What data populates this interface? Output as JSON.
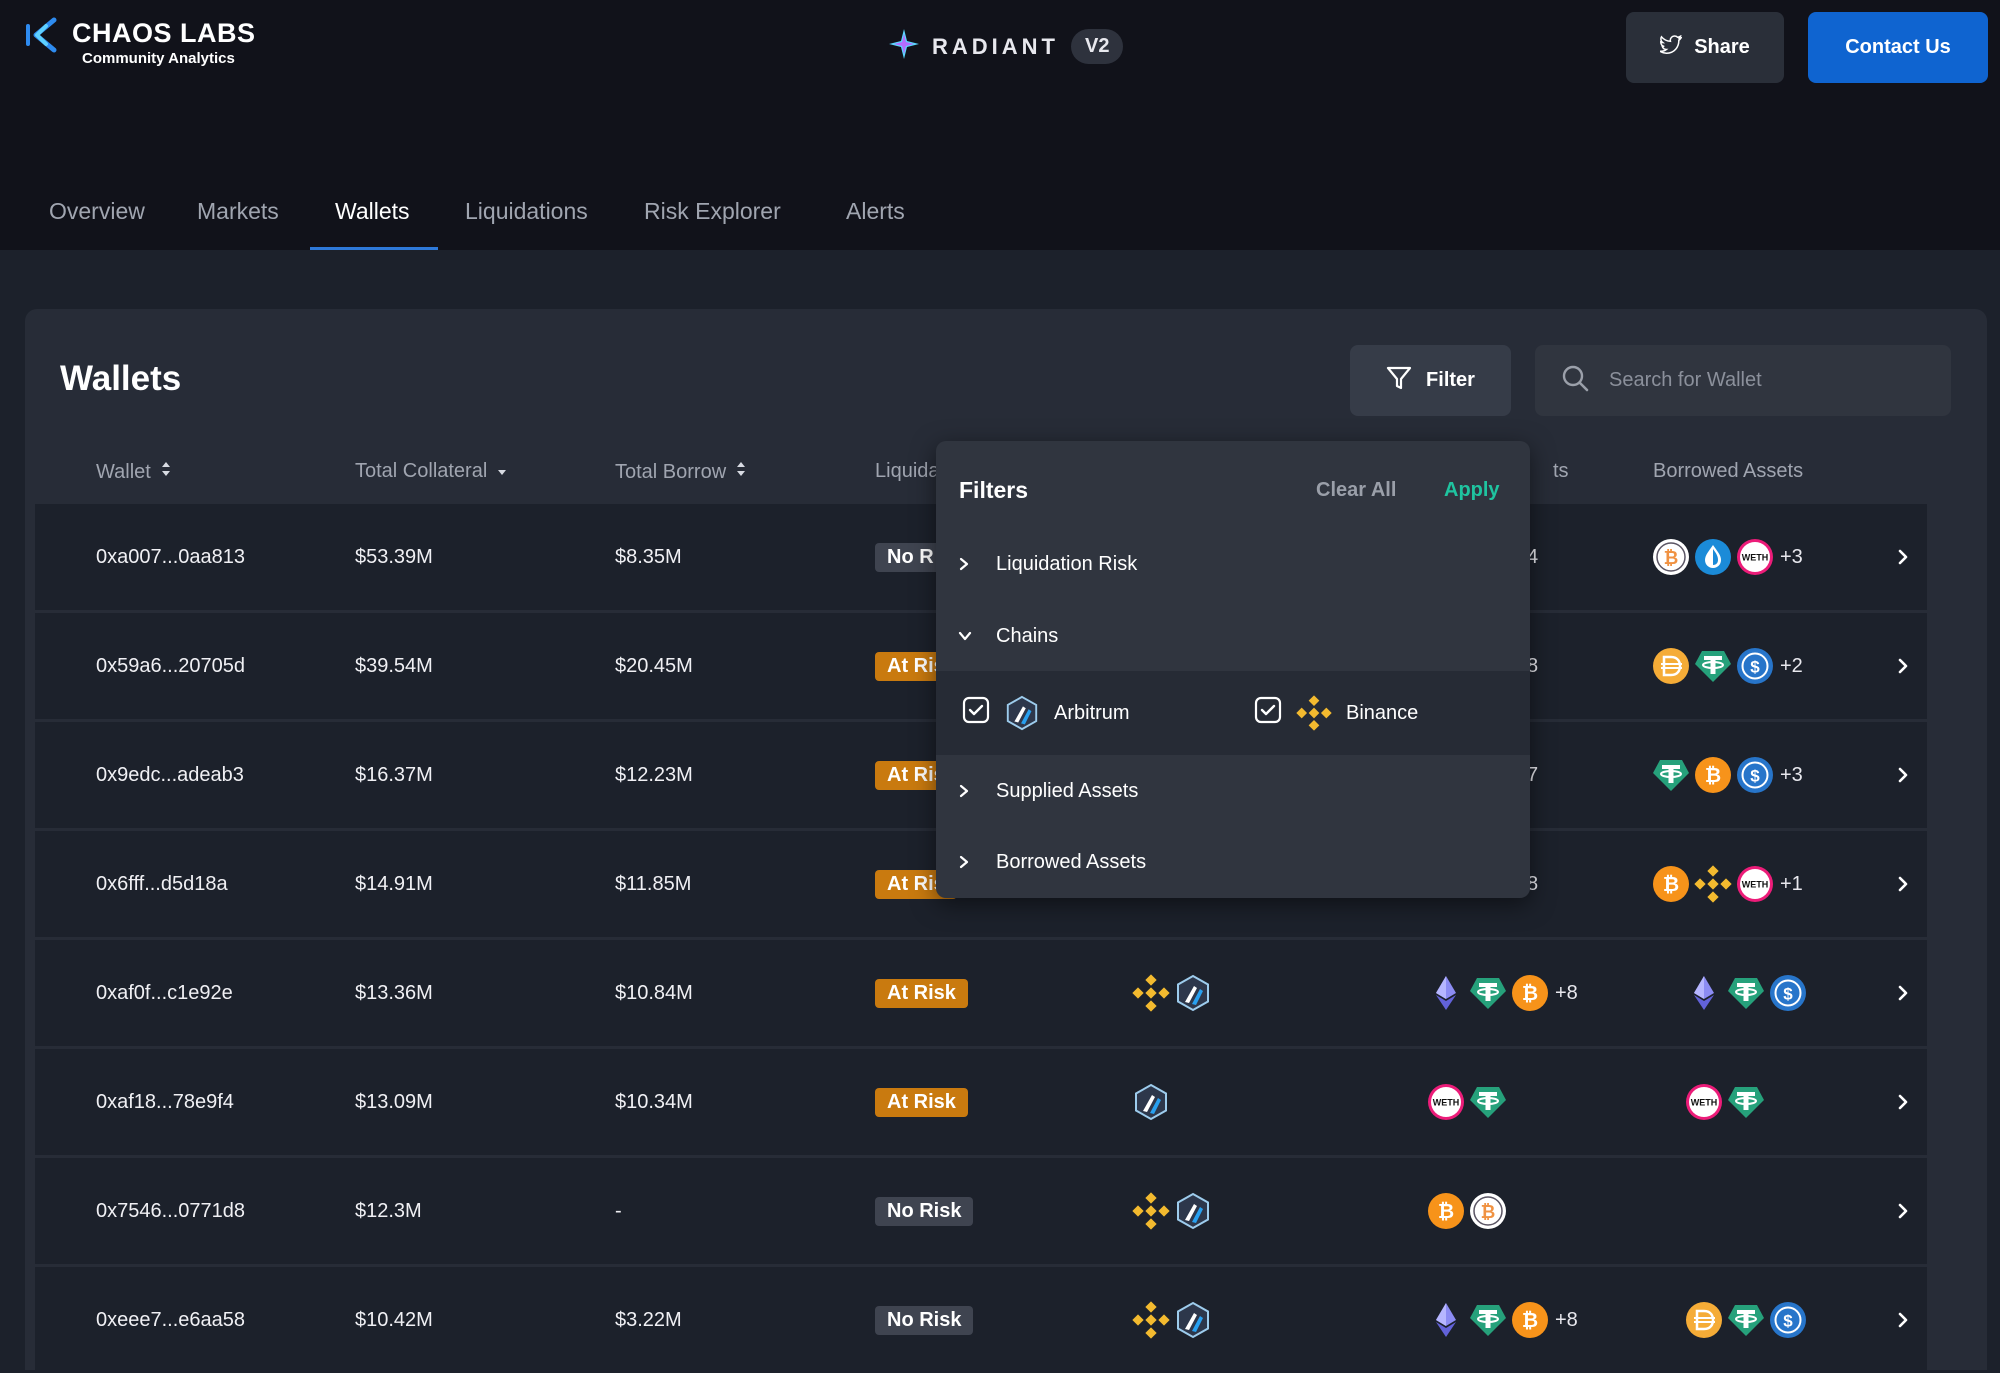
{
  "brand": {
    "name": "CHAOS LABS",
    "subtitle": "Community Analytics"
  },
  "protocol": {
    "name": "RADIANT",
    "version": "V2"
  },
  "header": {
    "share_label": "Share",
    "contact_label": "Contact Us"
  },
  "nav": {
    "tabs": [
      {
        "label": "Overview"
      },
      {
        "label": "Markets"
      },
      {
        "label": "Wallets"
      },
      {
        "label": "Liquidations"
      },
      {
        "label": "Risk Explorer"
      },
      {
        "label": "Alerts"
      }
    ],
    "active_tab": "Wallets"
  },
  "wallets": {
    "title": "Wallets",
    "filter_label": "Filter",
    "search_placeholder": "Search for Wallet",
    "columns": {
      "wallet": "Wallet",
      "total_collateral": "Total Collateral",
      "total_borrow": "Total Borrow",
      "liquidation_visible": "Liquida",
      "supplied_visible": "ts",
      "borrowed_assets": "Borrowed Assets"
    },
    "rows": [
      {
        "wallet": "0xa007...0aa813",
        "collateral": "$53.39M",
        "borrow": "$8.35M",
        "risk": "No R",
        "supplied_more": "4",
        "borrowed_more": "+3"
      },
      {
        "wallet": "0x59a6...20705d",
        "collateral": "$39.54M",
        "borrow": "$20.45M",
        "risk": "At Ris",
        "supplied_more": "8",
        "borrowed_more": "+2"
      },
      {
        "wallet": "0x9edc...adeab3",
        "collateral": "$16.37M",
        "borrow": "$12.23M",
        "risk": "At Ris",
        "supplied_more": "7",
        "borrowed_more": "+3"
      },
      {
        "wallet": "0x6fff...d5d18a",
        "collateral": "$14.91M",
        "borrow": "$11.85M",
        "risk": "At Ris",
        "supplied_more": "8",
        "borrowed_more": "+1"
      },
      {
        "wallet": "0xaf0f...c1e92e",
        "collateral": "$13.36M",
        "borrow": "$10.84M",
        "risk": "At Risk",
        "supplied_more": "+8",
        "borrowed_more": ""
      },
      {
        "wallet": "0xaf18...78e9f4",
        "collateral": "$13.09M",
        "borrow": "$10.34M",
        "risk": "At Risk",
        "supplied_more": "",
        "borrowed_more": ""
      },
      {
        "wallet": "0x7546...0771d8",
        "collateral": "$12.3M",
        "borrow": "-",
        "risk": "No Risk",
        "supplied_more": "",
        "borrowed_more": ""
      },
      {
        "wallet": "0xeee7...e6aa58",
        "collateral": "$10.42M",
        "borrow": "$3.22M",
        "risk": "No Risk",
        "supplied_more": "+8",
        "borrowed_more": ""
      }
    ]
  },
  "filter_panel": {
    "title": "Filters",
    "clear_label": "Clear All",
    "apply_label": "Apply",
    "sections": {
      "liquidation_risk": "Liquidation Risk",
      "chains": "Chains",
      "supplied_assets": "Supplied Assets",
      "borrowed_assets": "Borrowed Assets"
    },
    "chains": [
      {
        "label": "Arbitrum",
        "checked": true
      },
      {
        "label": "Binance",
        "checked": true
      }
    ]
  },
  "colors": {
    "accent_blue": "#0f64d0",
    "apply_green": "#1fc4a0",
    "at_risk": "#c97a0f",
    "no_risk": "#3f4450",
    "bitcoin": "#f7931a",
    "tether": "#26a17b",
    "usdc": "#2775ca",
    "binance": "#f3ba2f",
    "arbitrum": "#28a0f0"
  },
  "icons": [
    "chaos-labs-logo-icon",
    "radiant-star-icon",
    "twitter-icon",
    "filter-funnel-icon",
    "search-icon",
    "sort-icon",
    "sort-down-icon",
    "chevron-right-icon",
    "chevron-down-icon",
    "checkbox-checked-icon",
    "binance-icon",
    "arbitrum-icon",
    "bitcoin-icon",
    "wbtc-icon",
    "tether-icon",
    "usdc-icon",
    "ethereum-icon",
    "weth-icon",
    "dai-icon",
    "water-drop-icon"
  ]
}
